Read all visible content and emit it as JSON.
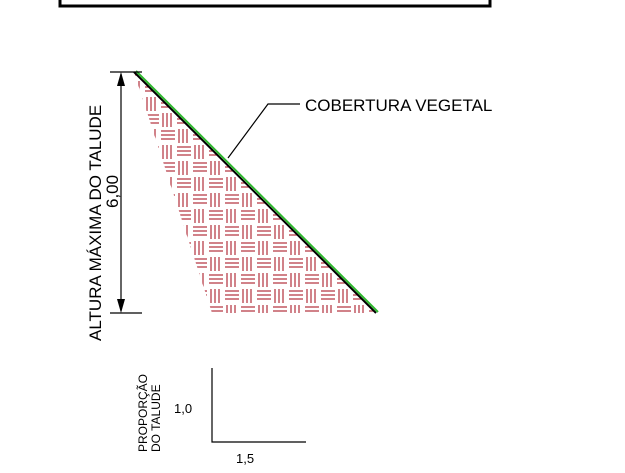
{
  "labels": {
    "cover": "COBERTURA VEGETAL",
    "height_title": "ALTURA MÁXIMA DO TALUDE",
    "height_value": "6,00",
    "proportion_line1": "PROPORÇÃO",
    "proportion_line2": "DO TALUDE",
    "vertical_ratio": "1,0",
    "horizontal_ratio": "1,5"
  },
  "colors": {
    "line": "#000000",
    "hatch": "#b22e3a",
    "vegetation": "#2fb82f",
    "background": "#ffffff"
  },
  "hatch_pattern": "basketweave (alternating groups of horizontal and vertical red lines)"
}
